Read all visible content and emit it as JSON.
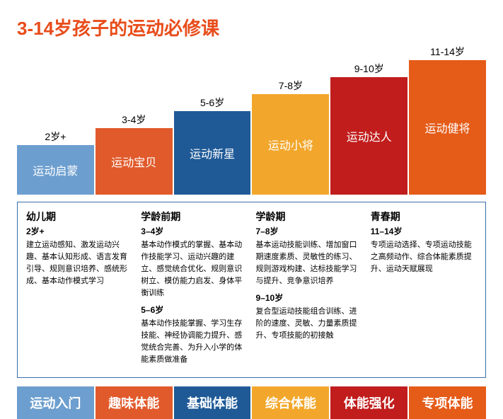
{
  "title": {
    "text": "3-14岁孩子的运动必修课",
    "color": "#e84c1a"
  },
  "stairs": {
    "base_height": 70,
    "step_increase": 24,
    "items": [
      {
        "age": "2岁+",
        "name": "运动启蒙",
        "color": "#6c9ecf"
      },
      {
        "age": "3-4岁",
        "name": "运动宝贝",
        "color": "#e15a2b"
      },
      {
        "age": "5-6岁",
        "name": "运动新星",
        "color": "#1f5a97"
      },
      {
        "age": "7-8岁",
        "name": "运动小将",
        "color": "#f2a72c"
      },
      {
        "age": "9-10岁",
        "name": "运动达人",
        "color": "#c11d1d"
      },
      {
        "age": "11-14岁",
        "name": "运动健将",
        "color": "#e55b18"
      }
    ]
  },
  "desc": {
    "border_color": "#3b6fa8",
    "cols": [
      {
        "phase": "幼儿期",
        "blocks": [
          {
            "age": "2岁+",
            "text": "建立运动感知、激发运动兴趣、基本认知形成、语言发育引导、规则意识培养、感统形成、基本动作模式学习"
          }
        ]
      },
      {
        "phase": "学龄前期",
        "blocks": [
          {
            "age": "3–4岁",
            "text": "基本动作模式的掌握、基本动作技能学习、运动兴趣的建立、感觉统合优化、规则意识树立、模仿能力启发、身体平衡训练"
          },
          {
            "age": "5–6岁",
            "text": "基本动作技能掌握、学习生存技能、神经协调能力提升、感觉统合完善、为升入小学的体能素质做准备"
          }
        ]
      },
      {
        "phase": "学龄期",
        "blocks": [
          {
            "age": "7–8岁",
            "text": "基本运动技能训练、增加窗口期速度素质、灵敏性的练习、规则游戏构建、达标技能学习与提升、竞争意识培养"
          },
          {
            "age": "9–10岁",
            "text": "复合型运动技能组合训练、进阶的速度、灵敏、力量素质提升、专项技能的初接触"
          }
        ]
      },
      {
        "phase": "青春期",
        "blocks": [
          {
            "age": "11–14岁",
            "text": "专项运动选择、专项运动技能之高频动作、综合体能素质提升、运动天赋展现"
          }
        ]
      }
    ]
  },
  "footer": [
    {
      "label": "运动入门",
      "color": "#6c9ecf"
    },
    {
      "label": "趣味体能",
      "color": "#e15a2b"
    },
    {
      "label": "基础体能",
      "color": "#1f5a97"
    },
    {
      "label": "综合体能",
      "color": "#f2a72c"
    },
    {
      "label": "体能强化",
      "color": "#c11d1d"
    },
    {
      "label": "专项体能",
      "color": "#e55b18"
    }
  ]
}
